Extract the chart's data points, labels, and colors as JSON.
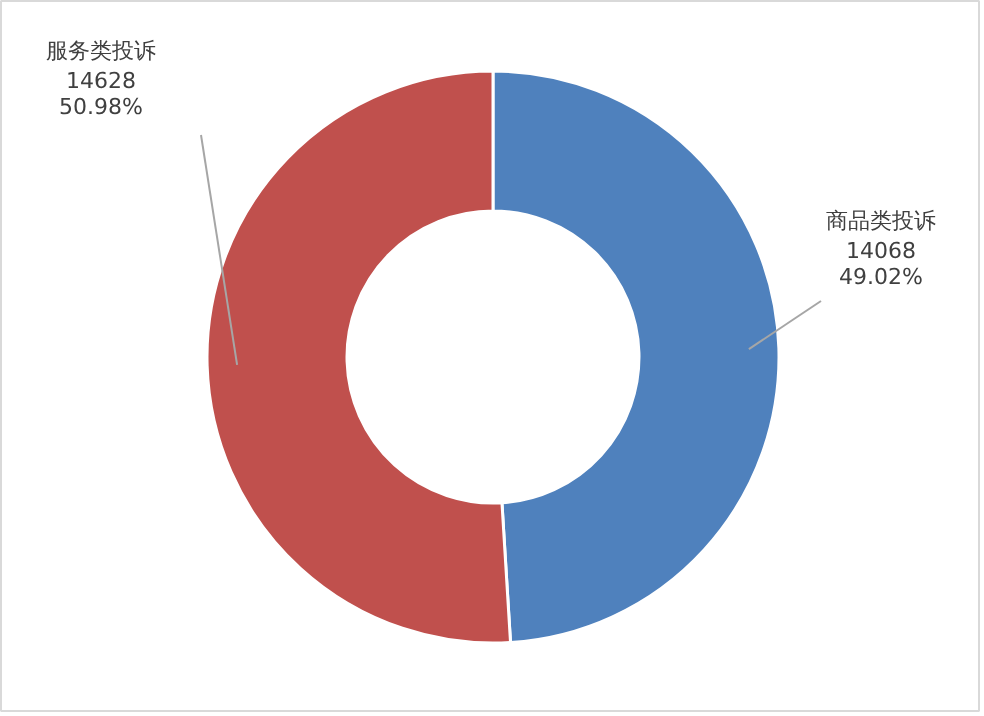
{
  "chart_data": {
    "type": "donut",
    "categories": [
      "商品类投诉",
      "服务类投诉"
    ],
    "values": [
      14068,
      14628
    ],
    "colors": [
      "#4f81bd",
      "#c0504d"
    ],
    "value_labels": [
      "14068\n49.02%",
      "14628\n50.98%"
    ]
  }
}
